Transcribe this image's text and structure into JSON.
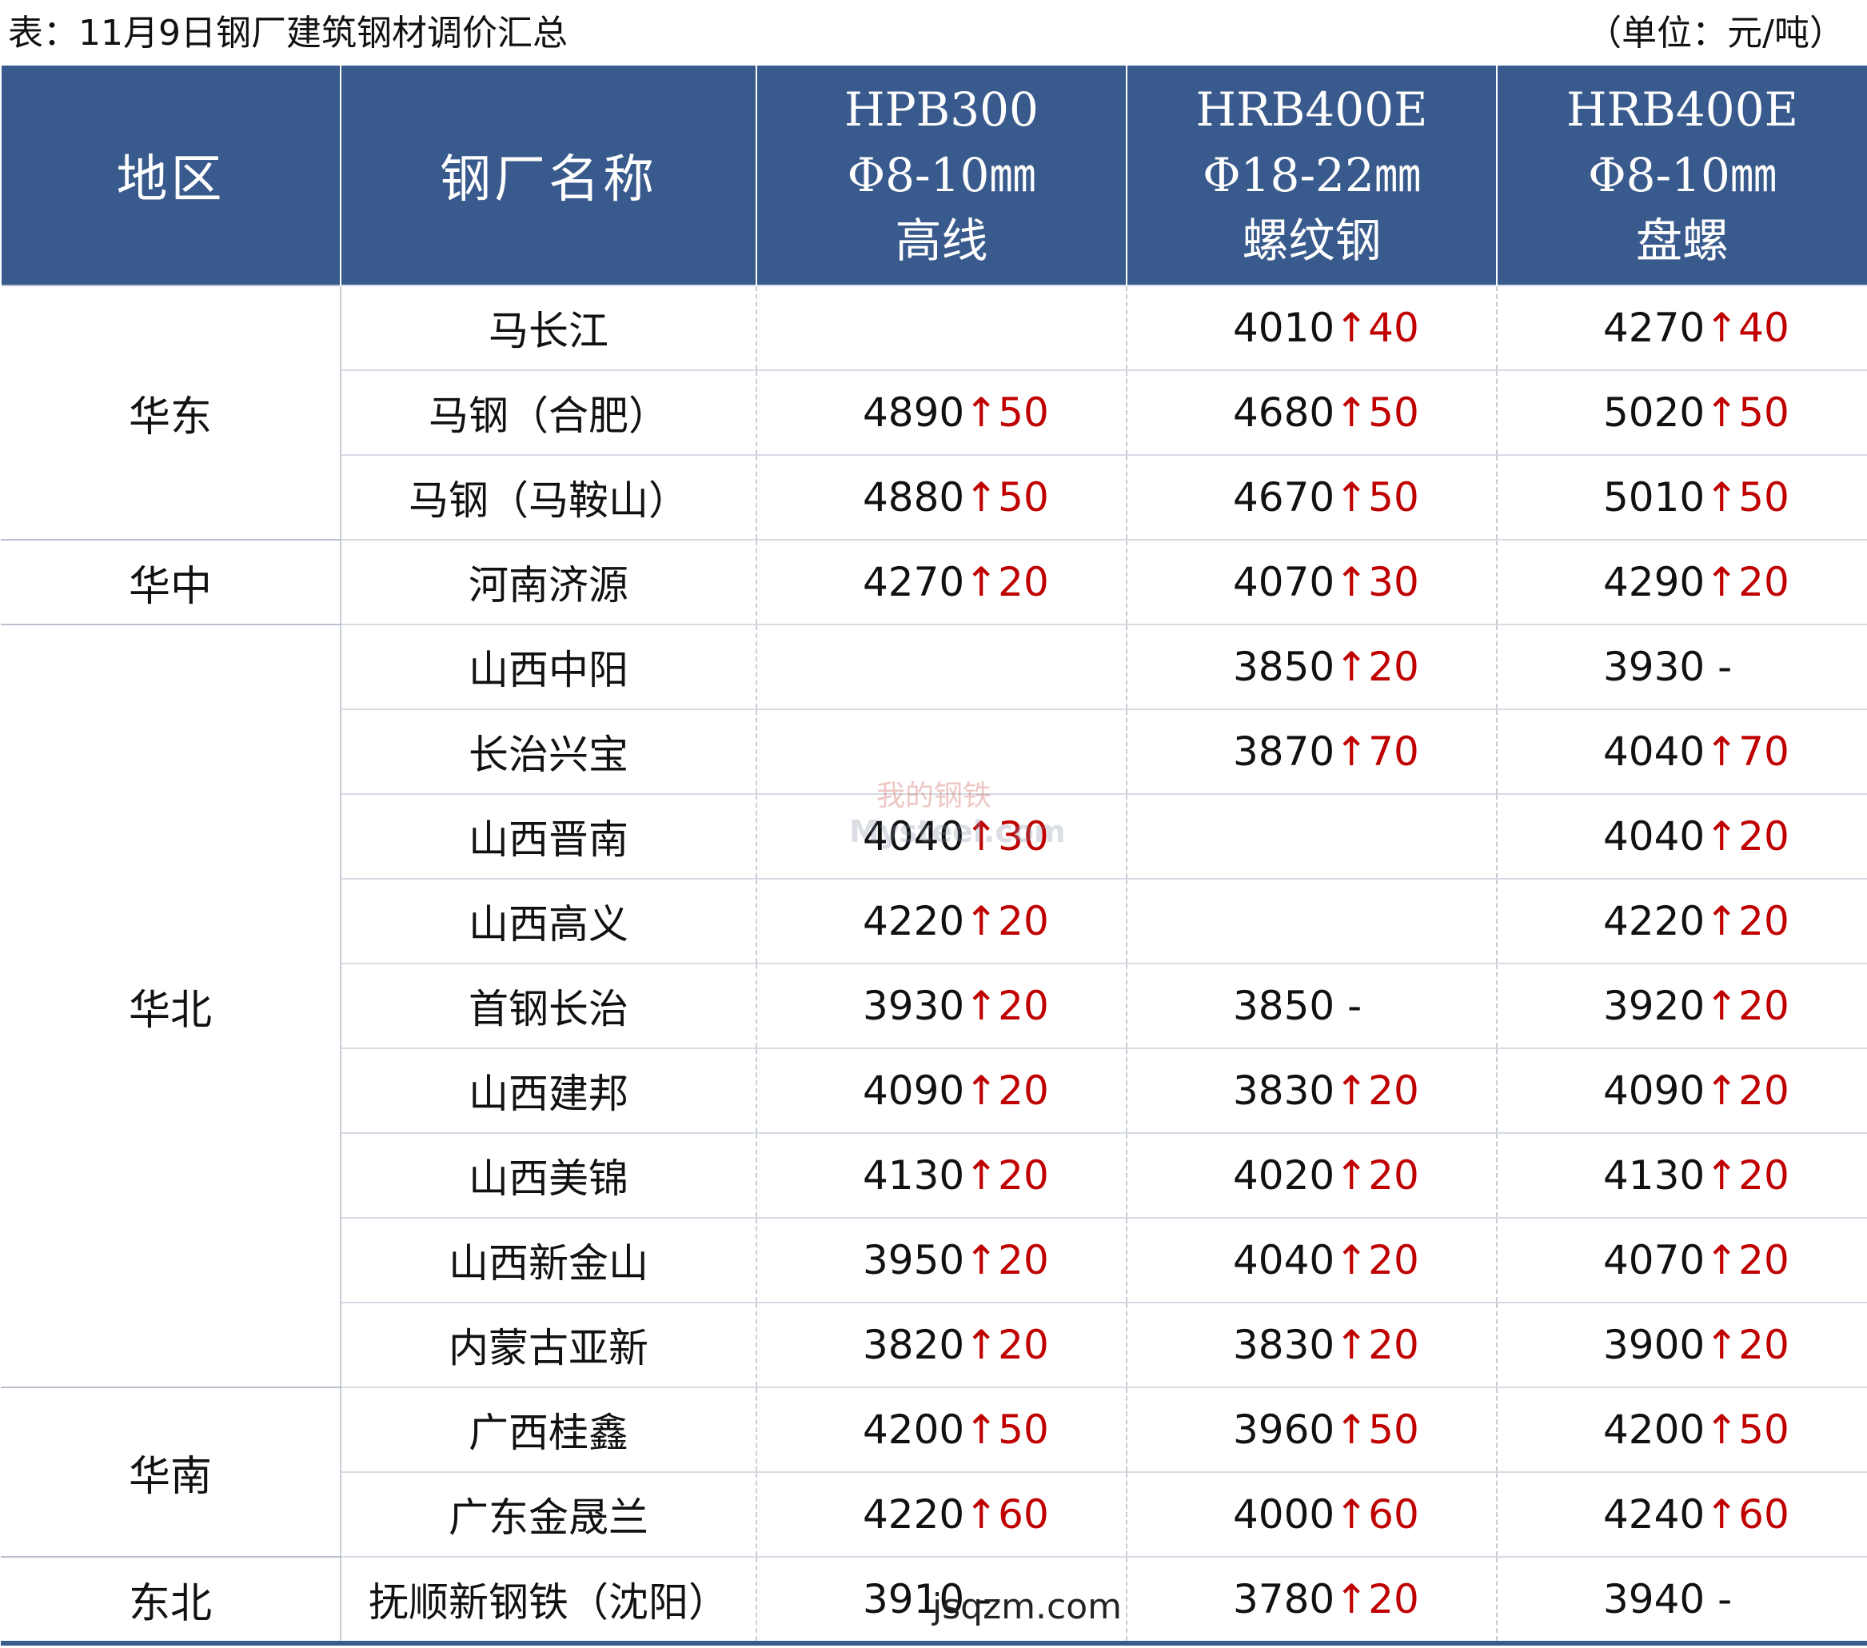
{
  "title": "表：11月9日钢厂建筑钢材调价汇总",
  "unit": "（单位：元/吨）",
  "headers": {
    "region": "地区",
    "mill": "钢厂名称",
    "col1": [
      "HPB300",
      "Φ8-10㎜",
      "高线"
    ],
    "col2": [
      "HRB400E",
      "Φ18-22㎜",
      "螺纹钢"
    ],
    "col3": [
      "HRB400E",
      "Φ8-10㎜",
      "盘螺"
    ]
  },
  "regions": [
    {
      "name": "华东",
      "rows": [
        {
          "mill": "马长江",
          "p1": {
            "val": "",
            "arrow": "",
            "chg": ""
          },
          "p2": {
            "val": "4010",
            "arrow": "↑",
            "chg": "40"
          },
          "p3": {
            "val": "4270",
            "arrow": "↑",
            "chg": "40"
          }
        },
        {
          "mill": "马钢（合肥）",
          "p1": {
            "val": "4890",
            "arrow": "↑",
            "chg": "50"
          },
          "p2": {
            "val": "4680",
            "arrow": "↑",
            "chg": "50"
          },
          "p3": {
            "val": "5020",
            "arrow": "↑",
            "chg": "50"
          }
        },
        {
          "mill": "马钢（马鞍山）",
          "p1": {
            "val": "4880",
            "arrow": "↑",
            "chg": "50"
          },
          "p2": {
            "val": "4670",
            "arrow": "↑",
            "chg": "50"
          },
          "p3": {
            "val": "5010",
            "arrow": "↑",
            "chg": "50"
          }
        }
      ]
    },
    {
      "name": "华中",
      "rows": [
        {
          "mill": "河南济源",
          "p1": {
            "val": "4270",
            "arrow": "↑",
            "chg": "20"
          },
          "p2": {
            "val": "4070",
            "arrow": "↑",
            "chg": "30"
          },
          "p3": {
            "val": "4290",
            "arrow": "↑",
            "chg": "20"
          }
        }
      ]
    },
    {
      "name": "华北",
      "rows": [
        {
          "mill": "山西中阳",
          "p1": {
            "val": "",
            "arrow": "",
            "chg": ""
          },
          "p2": {
            "val": "3850",
            "arrow": "↑",
            "chg": "20"
          },
          "p3": {
            "val": "3930",
            "arrow": "",
            "chg": " -"
          }
        },
        {
          "mill": "长治兴宝",
          "p1": {
            "val": "",
            "arrow": "",
            "chg": ""
          },
          "p2": {
            "val": "3870",
            "arrow": "↑",
            "chg": "70"
          },
          "p3": {
            "val": "4040",
            "arrow": "↑",
            "chg": "70"
          }
        },
        {
          "mill": "山西晋南",
          "p1": {
            "val": "4040",
            "arrow": "↑",
            "chg": "30"
          },
          "p2": {
            "val": "",
            "arrow": "",
            "chg": ""
          },
          "p3": {
            "val": "4040",
            "arrow": "↑",
            "chg": "20"
          }
        },
        {
          "mill": "山西高义",
          "p1": {
            "val": "4220",
            "arrow": "↑",
            "chg": "20"
          },
          "p2": {
            "val": "",
            "arrow": "",
            "chg": ""
          },
          "p3": {
            "val": "4220",
            "arrow": "↑",
            "chg": "20"
          }
        },
        {
          "mill": "首钢长治",
          "p1": {
            "val": "3930",
            "arrow": "↑",
            "chg": "20"
          },
          "p2": {
            "val": "3850",
            "arrow": "",
            "chg": " -"
          },
          "p3": {
            "val": "3920",
            "arrow": "↑",
            "chg": "20"
          }
        },
        {
          "mill": "山西建邦",
          "p1": {
            "val": "4090",
            "arrow": "↑",
            "chg": "20"
          },
          "p2": {
            "val": "3830",
            "arrow": "↑",
            "chg": "20"
          },
          "p3": {
            "val": "4090",
            "arrow": "↑",
            "chg": "20"
          }
        },
        {
          "mill": "山西美锦",
          "p1": {
            "val": "4130",
            "arrow": "↑",
            "chg": "20"
          },
          "p2": {
            "val": "4020",
            "arrow": "↑",
            "chg": "20"
          },
          "p3": {
            "val": "4130",
            "arrow": "↑",
            "chg": "20"
          }
        },
        {
          "mill": "山西新金山",
          "p1": {
            "val": "3950",
            "arrow": "↑",
            "chg": "20"
          },
          "p2": {
            "val": "4040",
            "arrow": "↑",
            "chg": "20"
          },
          "p3": {
            "val": "4070",
            "arrow": "↑",
            "chg": "20"
          }
        },
        {
          "mill": "内蒙古亚新",
          "p1": {
            "val": "3820",
            "arrow": "↑",
            "chg": "20"
          },
          "p2": {
            "val": "3830",
            "arrow": "↑",
            "chg": "20"
          },
          "p3": {
            "val": "3900",
            "arrow": "↑",
            "chg": "20"
          }
        }
      ]
    },
    {
      "name": "华南",
      "rows": [
        {
          "mill": "广西桂鑫",
          "p1": {
            "val": "4200",
            "arrow": "↑",
            "chg": "50"
          },
          "p2": {
            "val": "3960",
            "arrow": "↑",
            "chg": "50"
          },
          "p3": {
            "val": "4200",
            "arrow": "↑",
            "chg": "50"
          }
        },
        {
          "mill": "广东金晟兰",
          "p1": {
            "val": "4220",
            "arrow": "↑",
            "chg": "60"
          },
          "p2": {
            "val": "4000",
            "arrow": "↑",
            "chg": "60"
          },
          "p3": {
            "val": "4240",
            "arrow": "↑",
            "chg": "60"
          }
        }
      ]
    },
    {
      "name": "东北",
      "rows": [
        {
          "mill": "抚顺新钢铁（沈阳）",
          "p1": {
            "val": "3910",
            "arrow": "",
            "chg": " -"
          },
          "p2": {
            "val": "3780",
            "arrow": "↑",
            "chg": "20"
          },
          "p3": {
            "val": "3940",
            "arrow": "",
            "chg": " -"
          }
        }
      ]
    }
  ],
  "watermark": {
    "top": "我的钢铁",
    "bottom": "Mysteel.com"
  },
  "site_mark": "jsqzm.com",
  "colors": {
    "header_bg": "#395a8c",
    "rise": "#c00000"
  }
}
